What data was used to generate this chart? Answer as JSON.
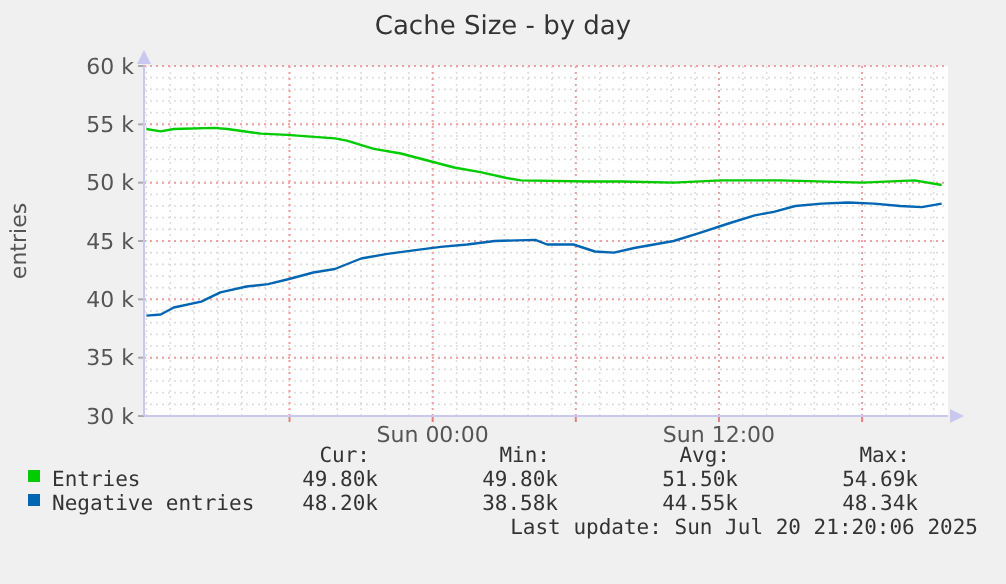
{
  "chart_data": {
    "type": "line",
    "title": "Cache Size - by day",
    "ylabel": "entries",
    "xlim": [
      "2025-07-19T11:54",
      "2025-07-20T21:36"
    ],
    "xticks": [
      {
        "value": "2025-07-19T18:00",
        "label": null
      },
      {
        "value": "2025-07-20T00:00",
        "label": "Sun 00:00"
      },
      {
        "value": "2025-07-20T06:00",
        "label": null
      },
      {
        "value": "2025-07-20T12:00",
        "label": "Sun 12:00"
      },
      {
        "value": "2025-07-20T18:00",
        "label": null
      }
    ],
    "ylim": [
      30000,
      60000
    ],
    "yticks": [
      {
        "value": 30000,
        "label": "30 k"
      },
      {
        "value": 35000,
        "label": "35 k"
      },
      {
        "value": 40000,
        "label": "40 k"
      },
      {
        "value": 45000,
        "label": "45 k"
      },
      {
        "value": 50000,
        "label": "50 k"
      },
      {
        "value": 55000,
        "label": "55 k"
      },
      {
        "value": 60000,
        "label": "60 k"
      }
    ],
    "grid": true,
    "legend": "bottom",
    "marker": "none",
    "line_style": "solid",
    "series": [
      {
        "name": "Entries",
        "color": "#00cc00",
        "x": [
          "2025-07-19T12:00",
          "2025-07-19T12:36",
          "2025-07-19T13:09",
          "2025-07-19T14:50",
          "2025-07-19T15:24",
          "2025-07-19T16:48",
          "2025-07-19T17:54",
          "2025-07-19T19:54",
          "2025-07-19T20:24",
          "2025-07-19T21:32",
          "2025-07-19T22:40",
          "2025-07-19T23:47",
          "2025-07-20T00:54",
          "2025-07-20T02:00",
          "2025-07-20T03:06",
          "2025-07-20T03:42",
          "2025-07-20T06:30",
          "2025-07-20T07:54",
          "2025-07-20T10:06",
          "2025-07-20T12:06",
          "2025-07-20T14:36",
          "2025-07-20T18:00",
          "2025-07-20T20:12",
          "2025-07-20T21:20"
        ],
        "values": [
          54600,
          54400,
          54600,
          54700,
          54600,
          54200,
          54100,
          53800,
          53600,
          52900,
          52500,
          51900,
          51300,
          50900,
          50400,
          50200,
          50100,
          50100,
          50000,
          50200,
          50200,
          50000,
          50200,
          49800
        ]
      },
      {
        "name": "Negative entries",
        "color": "#0066b3",
        "x": [
          "2025-07-19T12:00",
          "2025-07-19T12:36",
          "2025-07-19T13:09",
          "2025-07-19T14:18",
          "2025-07-19T15:06",
          "2025-07-19T16:12",
          "2025-07-19T17:06",
          "2025-07-19T17:54",
          "2025-07-19T19:00",
          "2025-07-19T19:54",
          "2025-07-19T21:00",
          "2025-07-19T22:06",
          "2025-07-19T23:12",
          "2025-07-20T00:20",
          "2025-07-20T01:27",
          "2025-07-20T02:36",
          "2025-07-20T04:18",
          "2025-07-20T04:48",
          "2025-07-20T05:54",
          "2025-07-20T06:48",
          "2025-07-20T07:36",
          "2025-07-20T08:27",
          "2025-07-20T10:06",
          "2025-07-20T11:12",
          "2025-07-20T12:24",
          "2025-07-20T13:30",
          "2025-07-20T14:18",
          "2025-07-20T15:12",
          "2025-07-20T16:18",
          "2025-07-20T17:24",
          "2025-07-20T18:30",
          "2025-07-20T19:36",
          "2025-07-20T20:30",
          "2025-07-20T21:20"
        ],
        "values": [
          38600,
          38700,
          39300,
          39800,
          40600,
          41100,
          41300,
          41700,
          42300,
          42600,
          43500,
          43900,
          44200,
          44500,
          44700,
          45000,
          45100,
          44700,
          44700,
          44100,
          44000,
          44400,
          45000,
          45700,
          46500,
          47200,
          47500,
          48000,
          48200,
          48300,
          48200,
          48000,
          47900,
          48200
        ]
      }
    ],
    "annotations": [
      "Cur:",
      "Min:",
      "Avg:",
      "Max:",
      "49.80k",
      "49.80k",
      "51.50k",
      "54.69k",
      "48.20k",
      "38.58k",
      "44.55k",
      "48.34k",
      "Last update: Sun Jul 20 21:20:06 2025"
    ]
  }
}
